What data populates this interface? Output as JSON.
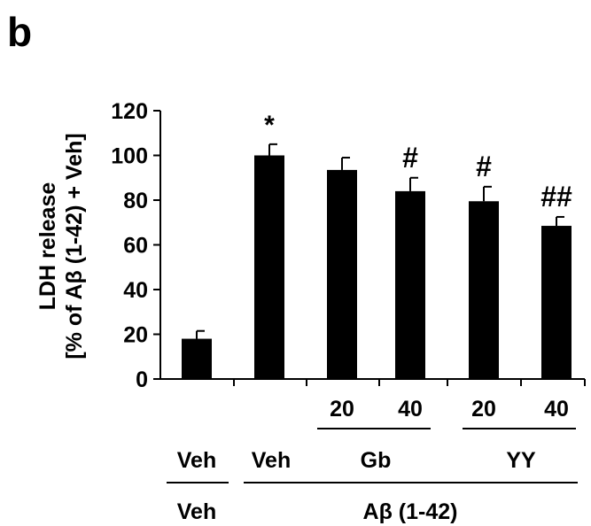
{
  "panel_label": "b",
  "chart_data": {
    "type": "bar",
    "ylabel_line1": "LDH release",
    "ylabel_line2": "[% of Aβ (1-42) + Veh]",
    "ylim": [
      0,
      120
    ],
    "yticks": [
      "0",
      "20",
      "40",
      "60",
      "80",
      "100",
      "120"
    ],
    "values": [
      18,
      100,
      93.5,
      84,
      79.5,
      68.5
    ],
    "errors": [
      3.5,
      5,
      5.5,
      6,
      6.5,
      4
    ],
    "annotations": [
      "",
      "*",
      "",
      "#",
      "#",
      "##"
    ],
    "dose_labels": [
      "20",
      "40",
      "20",
      "40"
    ],
    "treatment_labels": [
      "Veh",
      "Veh",
      "Gb",
      "YY"
    ],
    "group_labels": [
      "Veh",
      "Aβ (1-42)"
    ],
    "bar_color": "#000000"
  }
}
